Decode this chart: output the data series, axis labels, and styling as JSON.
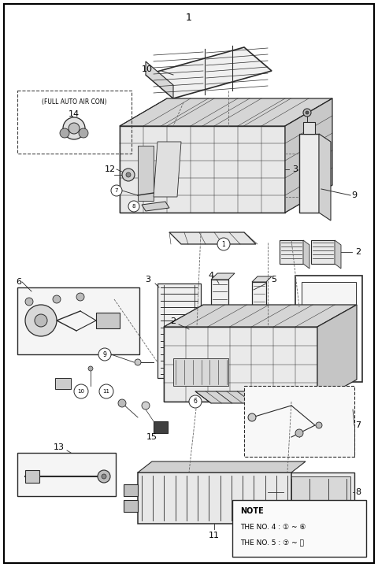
{
  "background_color": "#ffffff",
  "border_color": "#000000",
  "line_color": "#2a2a2a",
  "figsize": [
    4.8,
    7.2
  ],
  "dpi": 100,
  "note_lines": [
    "NOTE",
    "THE NO. 4 : ① ~ ⑥",
    "THE NO. 5 : ⑦ ~ ⑪"
  ]
}
